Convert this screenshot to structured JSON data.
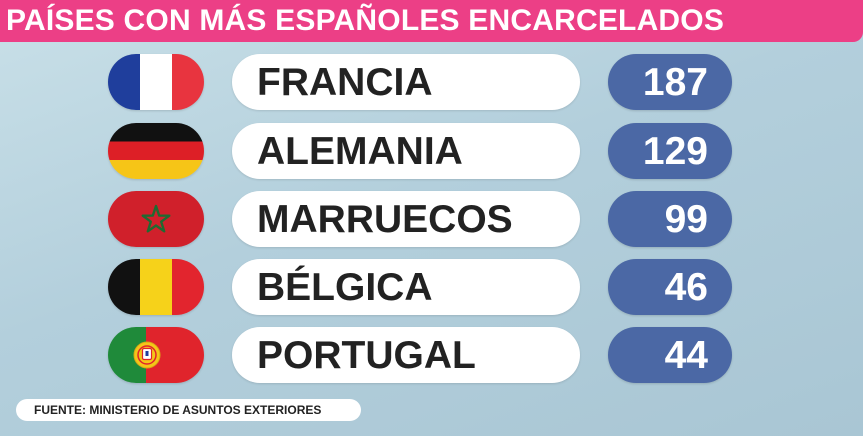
{
  "title": "PAÍSES CON MÁS ESPAÑOLES ENCARCELADOS",
  "source": "FUENTE: MINISTERIO DE ASUNTOS EXTERIORES",
  "colors": {
    "title_bar": "#ec3f86",
    "value_pill": "#4b68a5",
    "label_pill": "#ffffff",
    "background": "#b7d2de"
  },
  "chart_data": {
    "type": "table",
    "title": "PAÍSES CON MÁS ESPAÑOLES ENCARCELADOS",
    "categories": [
      "FRANCIA",
      "ALEMANIA",
      "MARRUECOS",
      "BÉLGICA",
      "PORTUGAL"
    ],
    "values": [
      187,
      129,
      99,
      46,
      44
    ],
    "flags": [
      "france-flag-icon",
      "germany-flag-icon",
      "morocco-flag-icon",
      "belgium-flag-icon",
      "portugal-flag-icon"
    ],
    "source": "FUENTE: MINISTERIO DE ASUNTOS EXTERIORES"
  },
  "rows": [
    {
      "country": "FRANCIA",
      "value": "187",
      "flag": "france-flag-icon"
    },
    {
      "country": "ALEMANIA",
      "value": "129",
      "flag": "germany-flag-icon"
    },
    {
      "country": "MARRUECOS",
      "value": "99",
      "flag": "morocco-flag-icon"
    },
    {
      "country": "BÉLGICA",
      "value": "46",
      "flag": "belgium-flag-icon"
    },
    {
      "country": "PORTUGAL",
      "value": "44",
      "flag": "portugal-flag-icon"
    }
  ]
}
